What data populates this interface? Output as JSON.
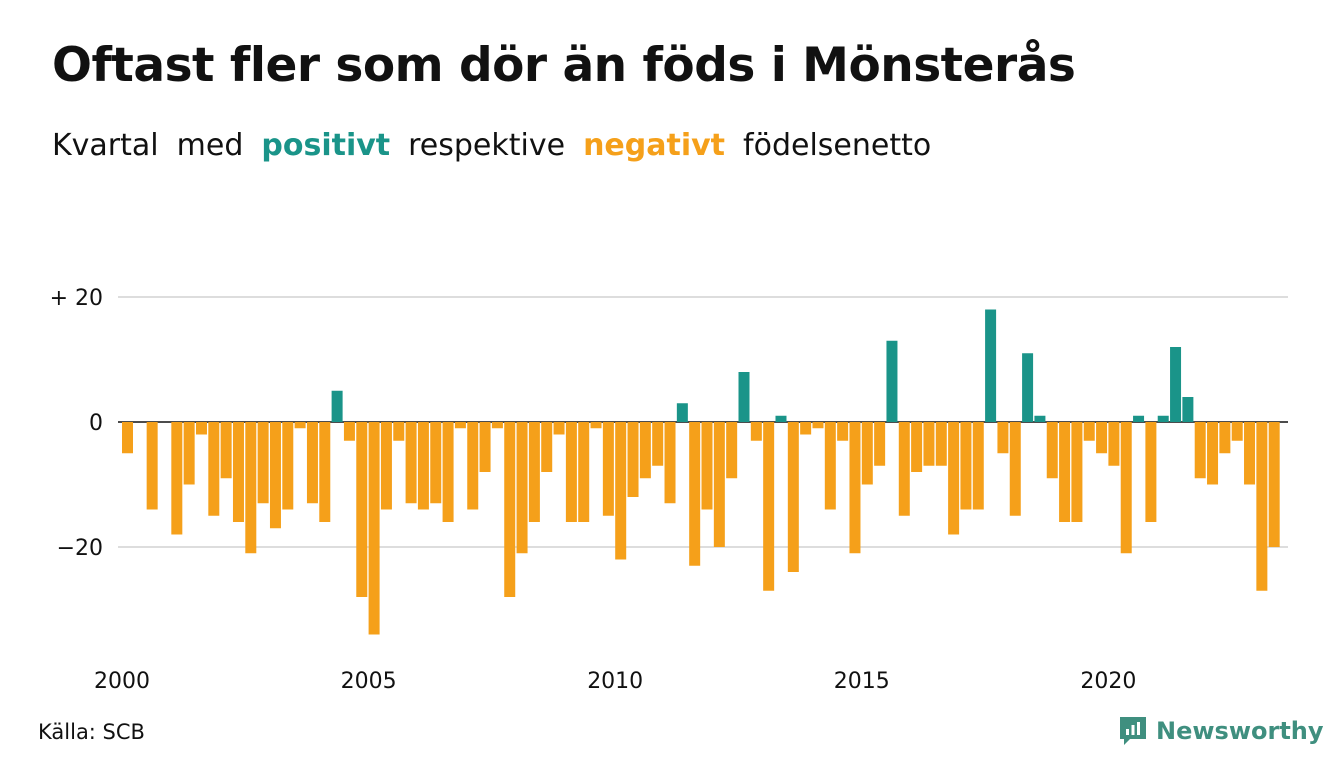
{
  "title": "Oftast fler som dör än föds i Mönsterås",
  "subtitle": {
    "part1": "Kvartal",
    "part2": "med",
    "positive": "positivt",
    "part3": "respektive",
    "negative": "negativt",
    "part4": "födelsenetto"
  },
  "source": "Källa: SCB",
  "brand": "Newsworthy",
  "colors": {
    "positive": "#1a9489",
    "negative": "#f5a01a",
    "grid": "#dddddd",
    "brand": "#3f8f7f"
  },
  "chart_data": {
    "type": "bar",
    "ylim": [
      -35,
      21
    ],
    "y_ticks": [
      {
        "value": 20,
        "label": "+ 20"
      },
      {
        "value": 0,
        "label": "0"
      },
      {
        "value": -20,
        "label": "−20"
      }
    ],
    "x_ticks": [
      {
        "year": 2000,
        "label": "2000"
      },
      {
        "year": 2005,
        "label": "2005"
      },
      {
        "year": 2010,
        "label": "2010"
      },
      {
        "year": 2015,
        "label": "2015"
      },
      {
        "year": 2020,
        "label": "2020"
      }
    ],
    "categories": [
      "2000 Q1",
      "2000 Q2",
      "2000 Q3",
      "2000 Q4",
      "2001 Q1",
      "2001 Q2",
      "2001 Q3",
      "2001 Q4",
      "2002 Q1",
      "2002 Q2",
      "2002 Q3",
      "2002 Q4",
      "2003 Q1",
      "2003 Q2",
      "2003 Q3",
      "2003 Q4",
      "2004 Q1",
      "2004 Q2",
      "2004 Q3",
      "2004 Q4",
      "2005 Q1",
      "2005 Q2",
      "2005 Q3",
      "2005 Q4",
      "2006 Q1",
      "2006 Q2",
      "2006 Q3",
      "2006 Q4",
      "2007 Q1",
      "2007 Q2",
      "2007 Q3",
      "2007 Q4",
      "2008 Q1",
      "2008 Q2",
      "2008 Q3",
      "2008 Q4",
      "2009 Q1",
      "2009 Q2",
      "2009 Q3",
      "2009 Q4",
      "2010 Q1",
      "2010 Q2",
      "2010 Q3",
      "2010 Q4",
      "2011 Q1",
      "2011 Q2",
      "2011 Q3",
      "2011 Q4",
      "2012 Q1",
      "2012 Q2",
      "2012 Q3",
      "2012 Q4",
      "2013 Q1",
      "2013 Q2",
      "2013 Q3",
      "2013 Q4",
      "2014 Q1",
      "2014 Q2",
      "2014 Q3",
      "2014 Q4",
      "2015 Q1",
      "2015 Q2",
      "2015 Q3",
      "2015 Q4",
      "2016 Q1",
      "2016 Q2",
      "2016 Q3",
      "2016 Q4",
      "2017 Q1",
      "2017 Q2",
      "2017 Q3",
      "2017 Q4",
      "2018 Q1",
      "2018 Q2",
      "2018 Q3",
      "2018 Q4",
      "2019 Q1",
      "2019 Q2",
      "2019 Q3",
      "2019 Q4",
      "2020 Q1",
      "2020 Q2",
      "2020 Q3",
      "2020 Q4",
      "2021 Q1",
      "2021 Q2",
      "2021 Q3",
      "2021 Q4",
      "2022 Q1",
      "2022 Q2",
      "2022 Q3",
      "2022 Q4",
      "2023 Q1",
      "2023 Q2",
      "2023 Q3",
      "2023 Q4"
    ],
    "values": [
      -5,
      0,
      -14,
      0,
      -18,
      -10,
      -2,
      -15,
      -9,
      -16,
      -21,
      -13,
      -17,
      -14,
      -1,
      -13,
      -16,
      5,
      -3,
      -28,
      -34,
      -14,
      -3,
      -13,
      -14,
      -13,
      -16,
      -1,
      -14,
      -8,
      -1,
      -28,
      -21,
      -16,
      -8,
      -2,
      -16,
      -16,
      -1,
      -15,
      -22,
      -12,
      -9,
      -7,
      -13,
      3,
      -23,
      -14,
      -20,
      -9,
      8,
      -3,
      -27,
      1,
      -24,
      -2,
      -1,
      -14,
      -3,
      -21,
      -10,
      -7,
      13,
      -15,
      -8,
      -7,
      -7,
      -18,
      -14,
      -14,
      18,
      -5,
      -15,
      11,
      1,
      -9,
      -16,
      -16,
      -3,
      -5,
      -7,
      -21,
      1,
      -16,
      1,
      12,
      4,
      -9,
      -10,
      -5,
      -3,
      -10,
      -27,
      -20,
      0,
      0
    ]
  }
}
